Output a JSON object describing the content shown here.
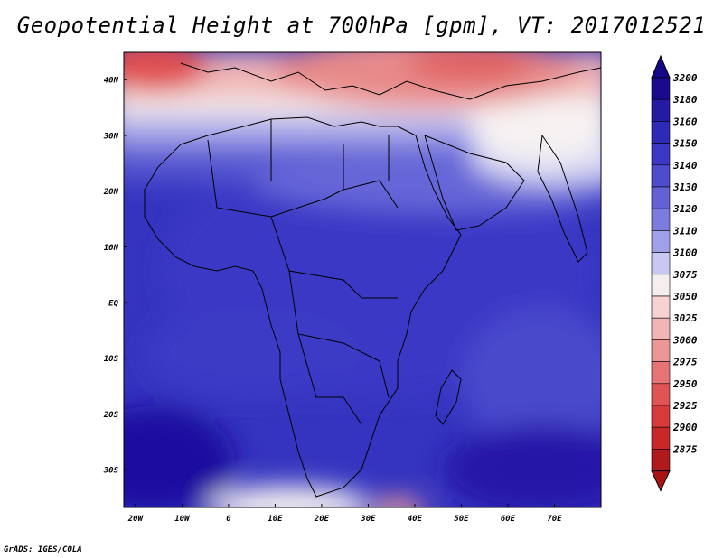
{
  "title": "Geopotential Height at 700hPa [gpm], VT: 2017012521",
  "credit": "GrADS: IGES/COLA",
  "map": {
    "lat_labels": [
      {
        "text": "40N",
        "lat": 40
      },
      {
        "text": "30N",
        "lat": 30
      },
      {
        "text": "20N",
        "lat": 20
      },
      {
        "text": "10N",
        "lat": 10
      },
      {
        "text": "EQ",
        "lat": 0
      },
      {
        "text": "10S",
        "lat": -10
      },
      {
        "text": "20S",
        "lat": -20
      },
      {
        "text": "30S",
        "lat": -30
      }
    ],
    "lon_labels": [
      {
        "text": "20W",
        "lon": -20
      },
      {
        "text": "10W",
        "lon": -10
      },
      {
        "text": "0",
        "lon": 0
      },
      {
        "text": "10E",
        "lon": 10
      },
      {
        "text": "20E",
        "lon": 20
      },
      {
        "text": "30E",
        "lon": 30
      },
      {
        "text": "40E",
        "lon": 40
      },
      {
        "text": "50E",
        "lon": 50
      },
      {
        "text": "60E",
        "lon": 60
      },
      {
        "text": "70E",
        "lon": 70
      }
    ]
  },
  "colorbar": {
    "levels": [
      {
        "label": "3200",
        "color": "#1a0a8c"
      },
      {
        "label": "3180",
        "color": "#241aa4"
      },
      {
        "label": "3160",
        "color": "#2e2ab8"
      },
      {
        "label": "3150",
        "color": "#3a38c4"
      },
      {
        "label": "3140",
        "color": "#4c4ccc"
      },
      {
        "label": "3130",
        "color": "#6262d4"
      },
      {
        "label": "3120",
        "color": "#7c7cde"
      },
      {
        "label": "3110",
        "color": "#a0a0e8"
      },
      {
        "label": "3100",
        "color": "#c8c8f2"
      },
      {
        "label": "3075",
        "color": "#f6eeee"
      },
      {
        "label": "3050",
        "color": "#f6d2d2"
      },
      {
        "label": "3025",
        "color": "#f2b4b4"
      },
      {
        "label": "3000",
        "color": "#ec9696"
      },
      {
        "label": "2975",
        "color": "#e67474"
      },
      {
        "label": "2950",
        "color": "#e05454"
      },
      {
        "label": "2925",
        "color": "#d63a3a"
      },
      {
        "label": "2900",
        "color": "#c82828"
      },
      {
        "label": "2875",
        "color": "#b01a1a"
      }
    ],
    "top_color": "#140888",
    "bottom_color": "#a81414"
  }
}
